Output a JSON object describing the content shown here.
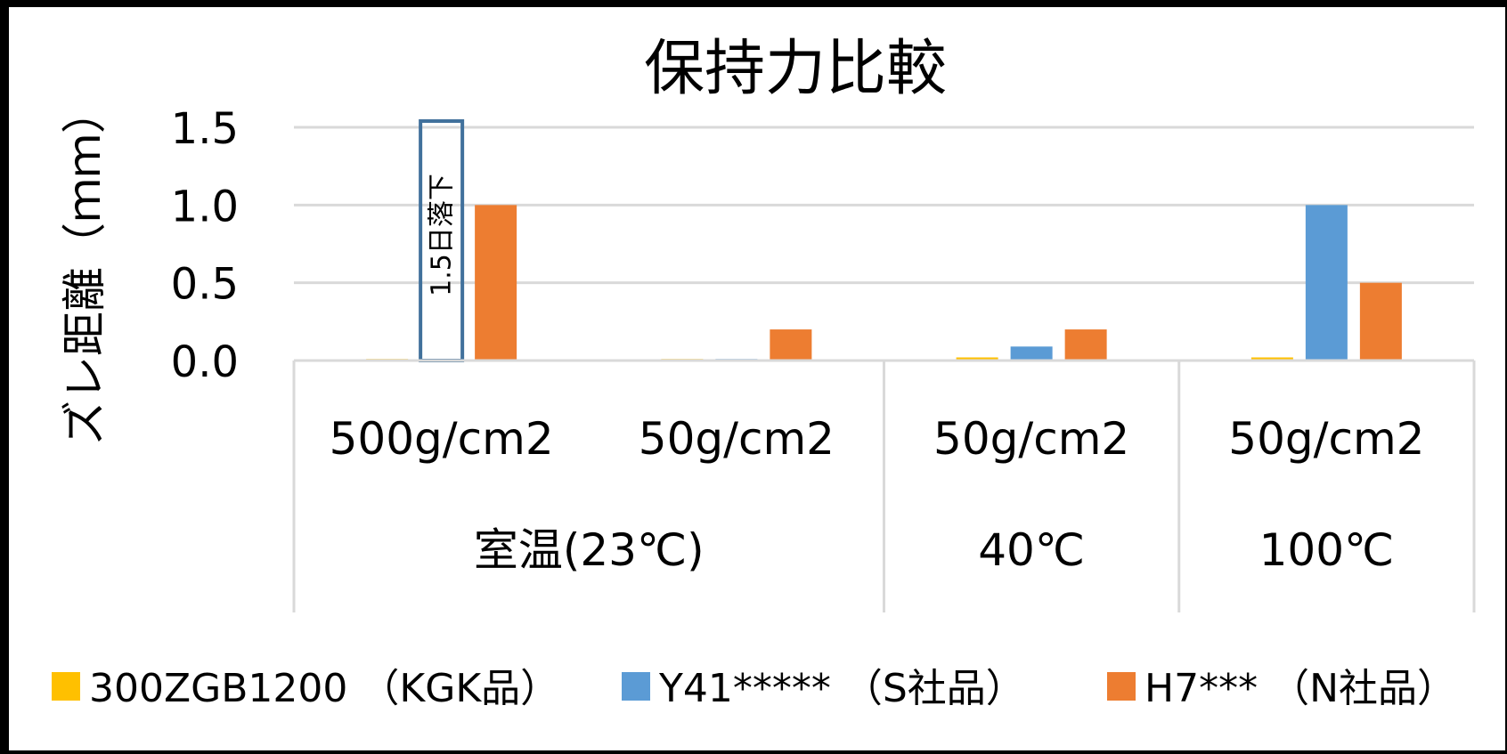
{
  "chart_data": {
    "type": "bar",
    "title": "保持力比較",
    "ylabel": "ズレ距離（ｍｍ）",
    "xlabel": "",
    "ylim": [
      0,
      1.5
    ],
    "yticks": [
      "0.0",
      "0.5",
      "1.0",
      "1.5"
    ],
    "ytick_values": [
      0,
      0.5,
      1.0,
      1.5
    ],
    "grid": true,
    "legend_position": "bottom",
    "categories": [
      "500g/cm2",
      "50g/cm2",
      "50g/cm2",
      "50g/cm2"
    ],
    "groups": [
      {
        "label": "室温(23℃)",
        "span": 2
      },
      {
        "label": "40℃",
        "span": 1
      },
      {
        "label": "100℃",
        "span": 1
      }
    ],
    "series": [
      {
        "name": "300ZGB1200 （KGK品）",
        "color": "#FFC000",
        "values": [
          0.01,
          0.01,
          0.02,
          0.02
        ]
      },
      {
        "name": "Y41***** （S社品）",
        "color": "#5B9BD5",
        "values": [
          null,
          0.01,
          0.09,
          1.0
        ]
      },
      {
        "name": "H7*** （N社品）",
        "color": "#ED7D31",
        "values": [
          1.0,
          0.2,
          0.2,
          0.5
        ]
      }
    ],
    "annotations": [
      {
        "text": "1.5日落下",
        "category_index": 0,
        "series_index": 1,
        "value": 1.5
      }
    ]
  }
}
